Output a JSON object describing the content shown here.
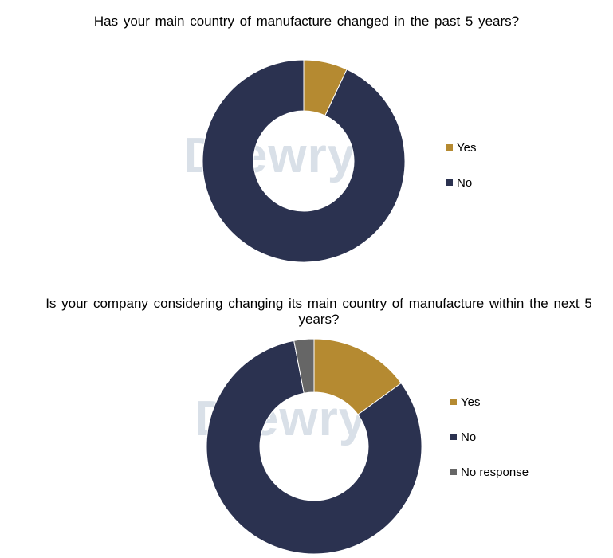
{
  "chart_data": [
    {
      "type": "pie",
      "title": "Has your main country of manufacture changed in the past 5 years?",
      "categories": [
        "Yes",
        "No"
      ],
      "values": [
        7,
        93
      ],
      "colors": [
        "#b58a31",
        "#2b3250"
      ],
      "legend_position": "right",
      "watermark": "Drewry"
    },
    {
      "type": "pie",
      "title": "Is your company considering changing its main country of manufacture within the next 5 years?",
      "categories": [
        "Yes",
        "No",
        "No response"
      ],
      "values": [
        15,
        82,
        3
      ],
      "colors": [
        "#b58a31",
        "#2b3250",
        "#666666"
      ],
      "legend_position": "right",
      "watermark": "Drewry"
    }
  ]
}
